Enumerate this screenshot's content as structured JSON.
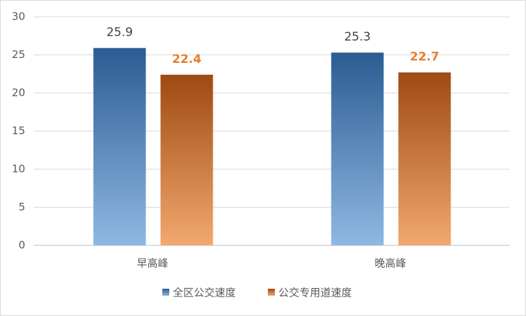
{
  "chart_data": {
    "type": "bar",
    "categories": [
      "早高峰",
      "晚高峰"
    ],
    "series": [
      {
        "name": "全区公交速度",
        "color": "#2e6aa8",
        "gradient": [
          "#2b5c92",
          "#8fb8e3"
        ],
        "label_color": "#404040",
        "values": [
          25.9,
          25.3
        ]
      },
      {
        "name": "公交专用道速度",
        "color": "#e0772a",
        "gradient": [
          "#9e4a12",
          "#f2a86e"
        ],
        "label_color": "#e87d2c",
        "values": [
          22.4,
          22.7
        ]
      }
    ],
    "ylim": [
      0,
      30
    ],
    "yticks": [
      0,
      5,
      10,
      15,
      20,
      25,
      30
    ],
    "grid": true,
    "legend": "bottom"
  }
}
